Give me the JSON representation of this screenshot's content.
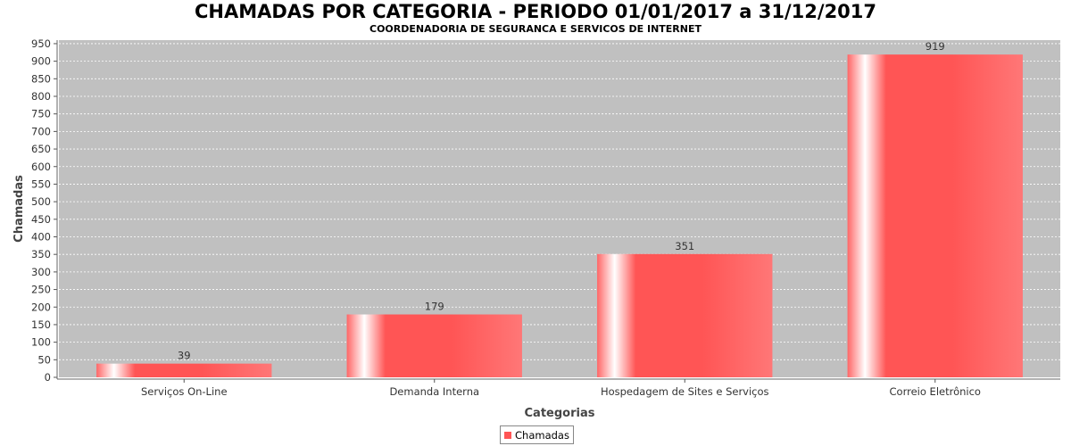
{
  "title": "CHAMADAS POR CATEGORIA - PERIODO 01/01/2017 a 31/12/2017",
  "subtitle": "COORDENADORIA DE SEGURANCA E SERVICOS DE INTERNET",
  "colors": {
    "bar": "#ff5555",
    "plot_background": "#c0c0c0",
    "gridline": "#ffffff"
  },
  "chart_data": {
    "type": "bar",
    "title": "CHAMADAS POR CATEGORIA - PERIODO 01/01/2017 a 31/12/2017",
    "subtitle": "COORDENADORIA DE SEGURANCA E SERVICOS DE INTERNET",
    "xlabel": "Categorias",
    "ylabel": "Chamadas",
    "categories": [
      "Serviços On-Line",
      "Demanda Interna",
      "Hospedagem de Sites e Serviços",
      "Correio Eletrônico"
    ],
    "series": [
      {
        "name": "Chamadas",
        "values": [
          39,
          179,
          351,
          919
        ]
      }
    ],
    "data_labels": [
      "39",
      "179",
      "351",
      "919"
    ],
    "ylim": [
      0,
      960
    ],
    "yticks": [
      0,
      50,
      100,
      150,
      200,
      250,
      300,
      350,
      400,
      450,
      500,
      550,
      600,
      650,
      700,
      750,
      800,
      850,
      900,
      950
    ],
    "grid": true,
    "legend": "bottom-center"
  }
}
